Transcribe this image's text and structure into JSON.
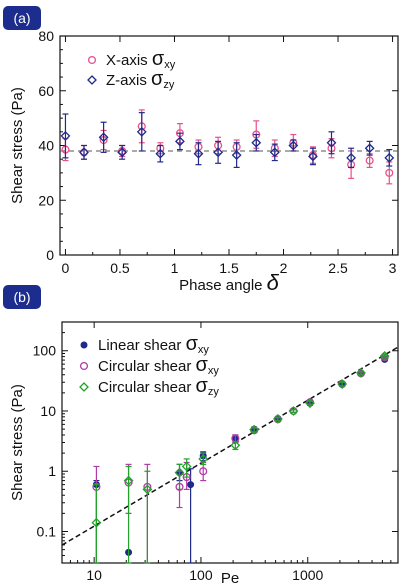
{
  "chart_data": [
    {
      "type": "scatter",
      "panel_label": "(a)",
      "xlabel": "Phase angle",
      "xlabel_symbol": "δ",
      "ylabel": "Shear stress (Pa)",
      "xlim": [
        -0.05,
        3.05
      ],
      "ylim": [
        0,
        80
      ],
      "x_ticks": [
        0,
        0.5,
        1,
        1.5,
        2,
        2.5,
        3
      ],
      "x_tick_labels": [
        "0",
        "0.5",
        "1",
        "1.5",
        "2",
        "2.5",
        "3"
      ],
      "y_ticks": [
        0,
        20,
        40,
        60,
        80
      ],
      "y_tick_labels": [
        "0",
        "20",
        "40",
        "60",
        "80"
      ],
      "reference_line": {
        "y": 38,
        "style": "dashed"
      },
      "legend_position": "top-left",
      "series": [
        {
          "name": "X-axis",
          "name_symbol": "σ",
          "name_sub": "xy",
          "marker": "circle-open",
          "color": "#e8508c",
          "points": [
            {
              "x": 0.0,
              "y": 38.5,
              "err": 4
            },
            {
              "x": 0.17,
              "y": 37.5,
              "err": 2.5
            },
            {
              "x": 0.35,
              "y": 42,
              "err": 3.5
            },
            {
              "x": 0.52,
              "y": 38,
              "err": 2
            },
            {
              "x": 0.7,
              "y": 47,
              "err": 6
            },
            {
              "x": 0.87,
              "y": 39,
              "err": 2
            },
            {
              "x": 1.05,
              "y": 44.5,
              "err": 3.5
            },
            {
              "x": 1.22,
              "y": 39.5,
              "err": 2.5
            },
            {
              "x": 1.4,
              "y": 40,
              "err": 3
            },
            {
              "x": 1.57,
              "y": 39.5,
              "err": 2.5
            },
            {
              "x": 1.75,
              "y": 44,
              "err": 5
            },
            {
              "x": 1.92,
              "y": 39,
              "err": 3
            },
            {
              "x": 2.09,
              "y": 41,
              "err": 3
            },
            {
              "x": 2.27,
              "y": 36.5,
              "err": 3
            },
            {
              "x": 2.44,
              "y": 39,
              "err": 3.5
            },
            {
              "x": 2.62,
              "y": 33,
              "err": 5
            },
            {
              "x": 2.79,
              "y": 34.5,
              "err": 2.5
            },
            {
              "x": 2.97,
              "y": 30,
              "err": 4
            }
          ]
        },
        {
          "name": "Z-axis",
          "name_symbol": "σ",
          "name_sub": "zy",
          "marker": "diamond-open",
          "color": "#1f2a8a",
          "points": [
            {
              "x": 0.0,
              "y": 43.5,
              "err": 8
            },
            {
              "x": 0.17,
              "y": 37.5,
              "err": 2.5
            },
            {
              "x": 0.35,
              "y": 43,
              "err": 5.5
            },
            {
              "x": 0.52,
              "y": 37.5,
              "err": 2.5
            },
            {
              "x": 0.7,
              "y": 45,
              "err": 7
            },
            {
              "x": 0.87,
              "y": 37,
              "err": 3
            },
            {
              "x": 1.05,
              "y": 41.5,
              "err": 3
            },
            {
              "x": 1.22,
              "y": 37,
              "err": 4
            },
            {
              "x": 1.4,
              "y": 37.5,
              "err": 4
            },
            {
              "x": 1.57,
              "y": 36.5,
              "err": 4.5
            },
            {
              "x": 1.75,
              "y": 41,
              "err": 3
            },
            {
              "x": 1.92,
              "y": 37.5,
              "err": 3
            },
            {
              "x": 2.09,
              "y": 40,
              "err": 2
            },
            {
              "x": 2.27,
              "y": 36,
              "err": 3
            },
            {
              "x": 2.44,
              "y": 41,
              "err": 4
            },
            {
              "x": 2.62,
              "y": 35.5,
              "err": 3.5
            },
            {
              "x": 2.79,
              "y": 39,
              "err": 2.5
            },
            {
              "x": 2.97,
              "y": 35.5,
              "err": 3
            }
          ]
        }
      ]
    },
    {
      "type": "scatter",
      "panel_label": "(b)",
      "xlabel": "Pe",
      "ylabel": "Shear stress (Pa)",
      "x_scale": "log",
      "y_scale": "log",
      "xlim": [
        5,
        7000
      ],
      "ylim": [
        0.03,
        300
      ],
      "x_ticks": [
        10,
        100,
        1000
      ],
      "x_tick_labels": [
        "10",
        "100",
        "1000"
      ],
      "y_ticks": [
        0.1,
        1,
        10,
        100
      ],
      "y_tick_labels": [
        "0.1",
        "1",
        "10",
        "100"
      ],
      "fit_line": {
        "style": "dashed",
        "from": [
          5,
          0.0595
        ],
        "to": [
          7000,
          115
        ]
      },
      "legend_position": "top-left",
      "series": [
        {
          "name": "Linear shear",
          "name_symbol": "σ",
          "name_sub": "xy",
          "marker": "circle-filled",
          "color": "#1f2a8a",
          "points": [
            {
              "x": 10.5,
              "y": 0.6,
              "lo": 0.03,
              "hi": 0.7
            },
            {
              "x": 21,
              "y": 0.045
            },
            {
              "x": 63,
              "y": 0.95,
              "lo": 0.7,
              "hi": 1.3
            },
            {
              "x": 80,
              "y": 0.6,
              "lo": 0.03,
              "hi": 1.1
            },
            {
              "x": 105,
              "y": 1.8,
              "lo": 1.5,
              "hi": 2.1
            },
            {
              "x": 210,
              "y": 3.5,
              "lo": 3,
              "hi": 4
            },
            {
              "x": 315,
              "y": 5,
              "lo": 4.6,
              "hi": 5.4
            },
            {
              "x": 525,
              "y": 7.5,
              "lo": 7,
              "hi": 8
            },
            {
              "x": 1050,
              "y": 13.5,
              "lo": 12.5,
              "hi": 14.5
            },
            {
              "x": 2100,
              "y": 28,
              "lo": 26,
              "hi": 30
            },
            {
              "x": 3150,
              "y": 42,
              "lo": 40,
              "hi": 44
            },
            {
              "x": 5250,
              "y": 72,
              "lo": 68,
              "hi": 76
            }
          ]
        },
        {
          "name": "Circular shear",
          "name_symbol": "σ",
          "name_sub": "xy",
          "marker": "circle-open",
          "color": "#b23aa8",
          "points": [
            {
              "x": 10.5,
              "y": 0.55,
              "lo": 0.03,
              "hi": 1.2
            },
            {
              "x": 21,
              "y": 0.65,
              "lo": 0.2,
              "hi": 1.3
            },
            {
              "x": 31.5,
              "y": 0.55,
              "lo": 0.03,
              "hi": 1.3
            },
            {
              "x": 63,
              "y": 0.55,
              "lo": 0.25,
              "hi": 1.0
            },
            {
              "x": 73.5,
              "y": 0.8,
              "lo": 0.5,
              "hi": 1.4
            },
            {
              "x": 105,
              "y": 1.0,
              "lo": 0.7,
              "hi": 1.4
            },
            {
              "x": 210,
              "y": 3.5,
              "lo": 3,
              "hi": 4
            },
            {
              "x": 315,
              "y": 4.8,
              "lo": 4.4,
              "hi": 5.2
            },
            {
              "x": 525,
              "y": 7.3,
              "lo": 6.9,
              "hi": 7.7
            },
            {
              "x": 735,
              "y": 10,
              "lo": 9.5,
              "hi": 10.5
            },
            {
              "x": 1050,
              "y": 14,
              "lo": 13,
              "hi": 15
            },
            {
              "x": 2100,
              "y": 28,
              "lo": 26,
              "hi": 30
            },
            {
              "x": 3150,
              "y": 42,
              "lo": 40,
              "hi": 44
            },
            {
              "x": 5250,
              "y": 78,
              "lo": 74,
              "hi": 82
            }
          ]
        },
        {
          "name": "Circular shear",
          "name_symbol": "σ",
          "name_sub": "zy",
          "marker": "diamond-open",
          "color": "#22a22a",
          "points": [
            {
              "x": 10.5,
              "y": 0.14,
              "lo": 0.03,
              "hi": 0.6
            },
            {
              "x": 21,
              "y": 0.7,
              "lo": 0.03,
              "hi": 1.2
            },
            {
              "x": 31.5,
              "y": 0.5,
              "lo": 0.03,
              "hi": 1.0
            },
            {
              "x": 63,
              "y": 0.95,
              "lo": 0.5,
              "hi": 1.3
            },
            {
              "x": 73.5,
              "y": 1.2,
              "lo": 0.8,
              "hi": 1.6
            },
            {
              "x": 105,
              "y": 1.6,
              "lo": 1.3,
              "hi": 2.0
            },
            {
              "x": 210,
              "y": 2.7,
              "lo": 2.3,
              "hi": 3.1
            },
            {
              "x": 315,
              "y": 4.9,
              "lo": 4.5,
              "hi": 5.3
            },
            {
              "x": 525,
              "y": 7.4,
              "lo": 7,
              "hi": 7.8
            },
            {
              "x": 735,
              "y": 10,
              "lo": 9.5,
              "hi": 10.5
            },
            {
              "x": 1050,
              "y": 13.5,
              "lo": 12.5,
              "hi": 14.5
            },
            {
              "x": 2100,
              "y": 28,
              "lo": 26,
              "hi": 30
            },
            {
              "x": 3150,
              "y": 43,
              "lo": 41,
              "hi": 45
            },
            {
              "x": 5250,
              "y": 82,
              "lo": 78,
              "hi": 86
            }
          ]
        }
      ]
    }
  ]
}
